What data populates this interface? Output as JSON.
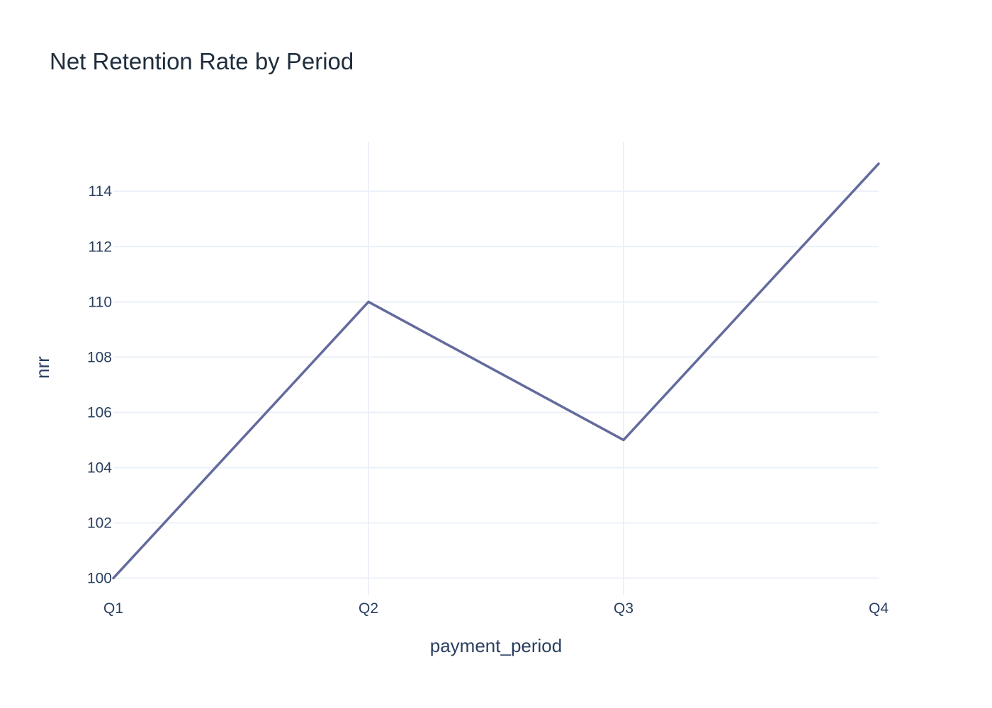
{
  "chart_data": {
    "type": "line",
    "title": "Net Retention Rate by Period",
    "xlabel": "payment_period",
    "ylabel": "nrr",
    "categories": [
      "Q1",
      "Q2",
      "Q3",
      "Q4"
    ],
    "series": [
      {
        "values": [
          100,
          110,
          105,
          115
        ]
      }
    ],
    "ylim": [
      99.4,
      115.8
    ],
    "yticks": [
      100,
      102,
      104,
      106,
      108,
      110,
      112,
      114
    ],
    "grid": true,
    "legend": "none",
    "colors": {
      "line": "#636a9d",
      "grid": "#ebf0f8",
      "text": "#2a3f5f"
    }
  }
}
